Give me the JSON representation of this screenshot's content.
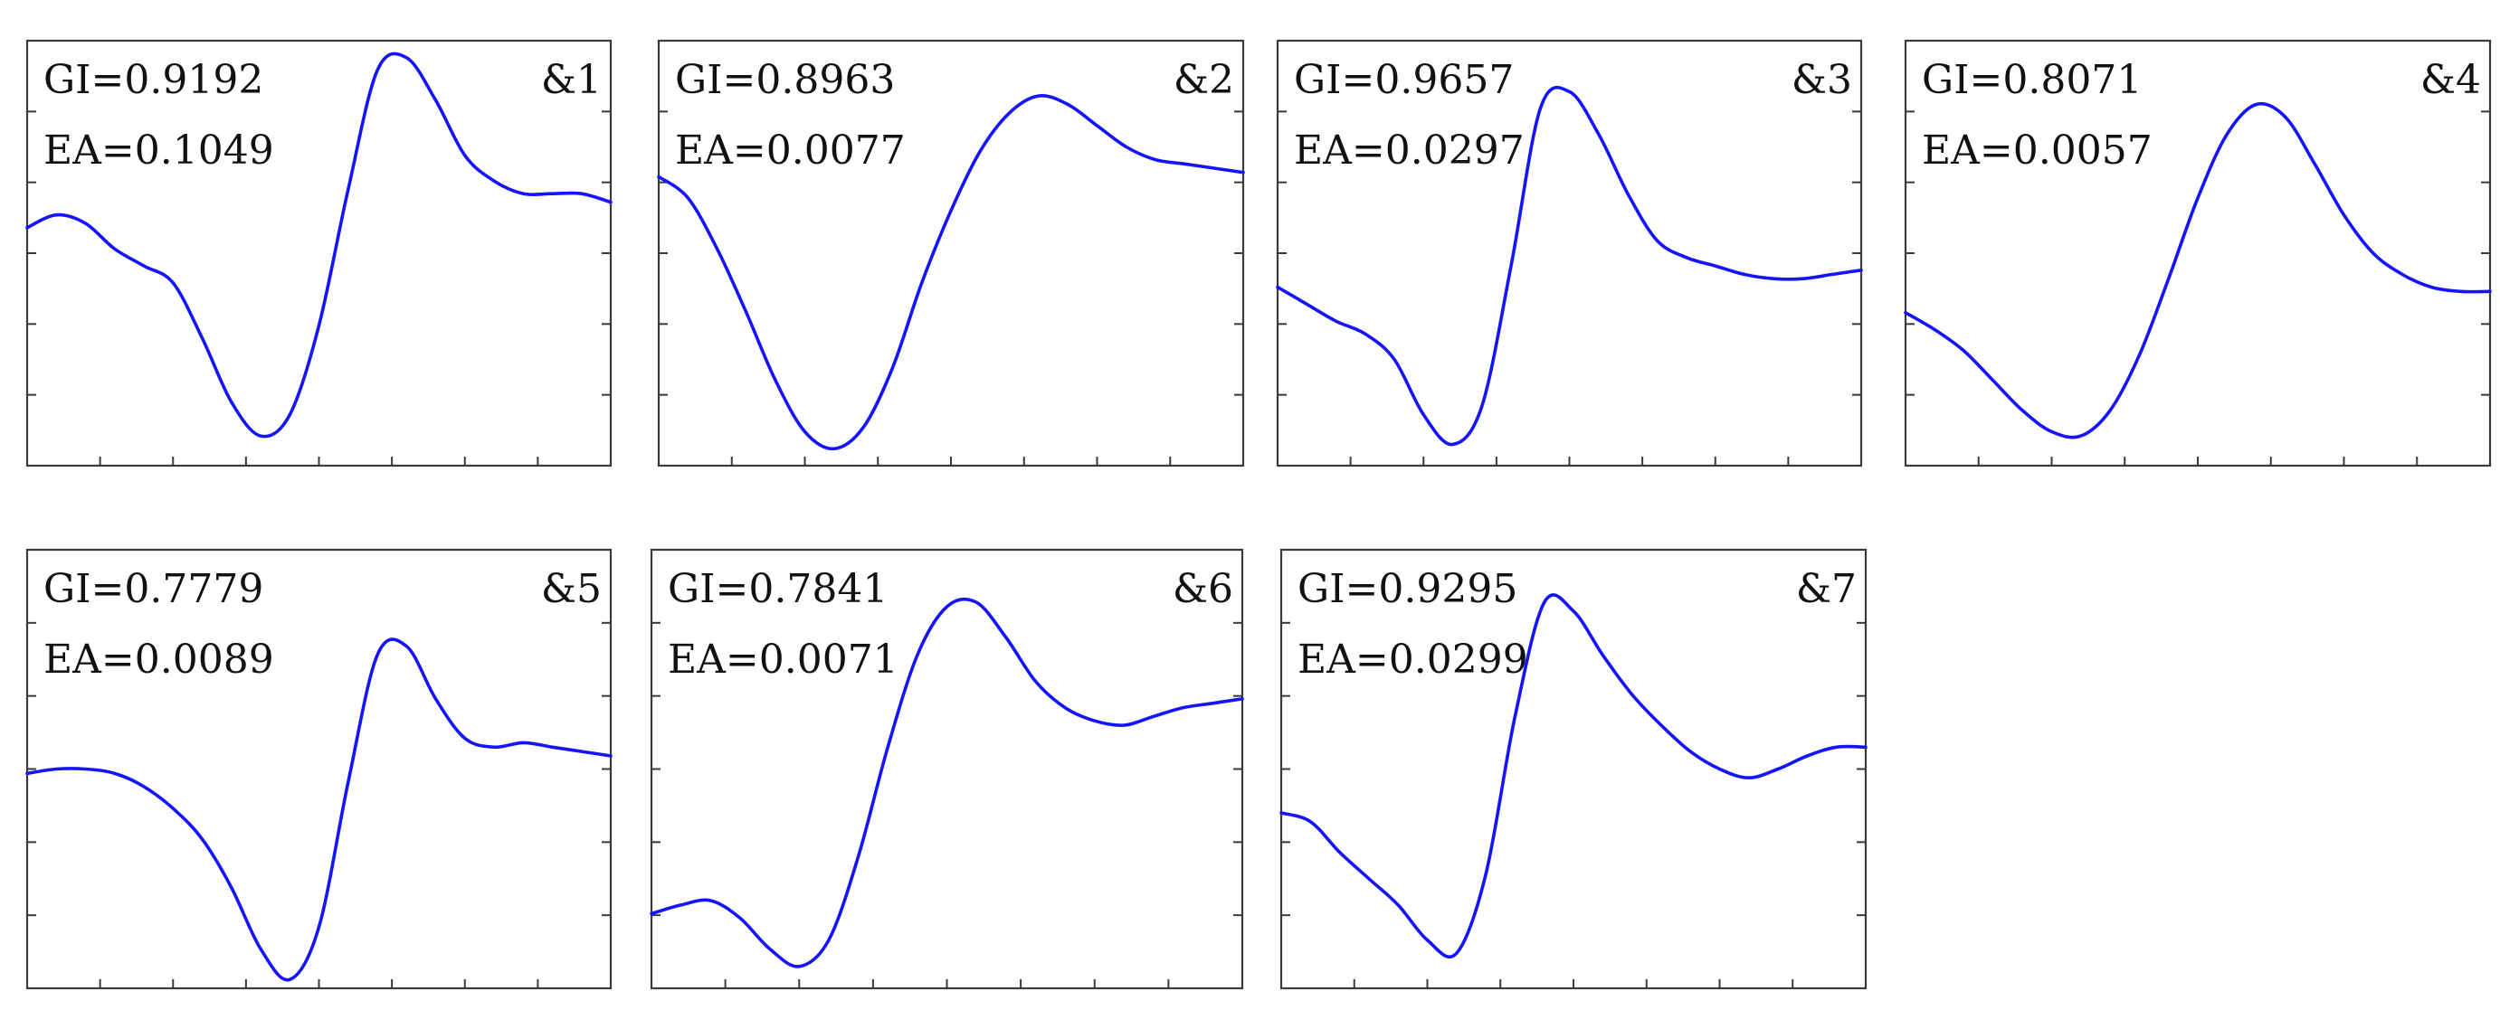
{
  "chart_data": [
    {
      "type": "line",
      "panel_label": "&1",
      "annotations": [
        "GI=0.9192",
        "EA=0.1049"
      ],
      "x": [
        0,
        0.05,
        0.1,
        0.15,
        0.2,
        0.25,
        0.3,
        0.35,
        0.4,
        0.45,
        0.5,
        0.55,
        0.6,
        0.65,
        0.7,
        0.75,
        0.8,
        0.85,
        0.9,
        0.95,
        1
      ],
      "y": [
        0.56,
        0.59,
        0.57,
        0.51,
        0.47,
        0.43,
        0.3,
        0.15,
        0.07,
        0.12,
        0.33,
        0.65,
        0.93,
        0.96,
        0.86,
        0.73,
        0.67,
        0.64,
        0.64,
        0.64,
        0.62
      ],
      "xlim": [
        0,
        1
      ],
      "ylim": [
        0,
        1
      ],
      "grid": false
    },
    {
      "type": "line",
      "panel_label": "&2",
      "annotations": [
        "GI=0.8963",
        "EA=0.0077"
      ],
      "x": [
        0,
        0.05,
        0.1,
        0.15,
        0.2,
        0.25,
        0.3,
        0.35,
        0.4,
        0.45,
        0.5,
        0.55,
        0.6,
        0.65,
        0.7,
        0.75,
        0.8,
        0.85,
        0.9,
        0.95,
        1
      ],
      "y": [
        0.68,
        0.63,
        0.51,
        0.36,
        0.2,
        0.08,
        0.04,
        0.09,
        0.23,
        0.43,
        0.6,
        0.74,
        0.83,
        0.87,
        0.85,
        0.8,
        0.75,
        0.72,
        0.71,
        0.7,
        0.69
      ],
      "xlim": [
        0,
        1
      ],
      "ylim": [
        0,
        1
      ],
      "grid": false
    },
    {
      "type": "line",
      "panel_label": "&3",
      "annotations": [
        "GI=0.9657",
        "EA=0.0297"
      ],
      "x": [
        0,
        0.05,
        0.1,
        0.15,
        0.2,
        0.25,
        0.3,
        0.35,
        0.4,
        0.45,
        0.5,
        0.55,
        0.6,
        0.65,
        0.7,
        0.75,
        0.8,
        0.85,
        0.9,
        0.95,
        1
      ],
      "y": [
        0.42,
        0.38,
        0.34,
        0.31,
        0.25,
        0.12,
        0.05,
        0.14,
        0.47,
        0.84,
        0.88,
        0.78,
        0.64,
        0.53,
        0.49,
        0.47,
        0.45,
        0.44,
        0.44,
        0.45,
        0.46
      ],
      "xlim": [
        0,
        1
      ],
      "ylim": [
        0,
        1
      ],
      "grid": false
    },
    {
      "type": "line",
      "panel_label": "&4",
      "annotations": [
        "GI=0.8071",
        "EA=0.0057"
      ],
      "x": [
        0,
        0.05,
        0.1,
        0.15,
        0.2,
        0.25,
        0.3,
        0.35,
        0.4,
        0.45,
        0.5,
        0.55,
        0.6,
        0.65,
        0.7,
        0.75,
        0.8,
        0.85,
        0.9,
        0.95,
        1
      ],
      "y": [
        0.36,
        0.32,
        0.27,
        0.2,
        0.13,
        0.08,
        0.07,
        0.13,
        0.26,
        0.44,
        0.63,
        0.78,
        0.85,
        0.82,
        0.71,
        0.59,
        0.5,
        0.45,
        0.42,
        0.41,
        0.41
      ],
      "xlim": [
        0,
        1
      ],
      "ylim": [
        0,
        1
      ],
      "grid": false
    },
    {
      "type": "line",
      "panel_label": "&5",
      "annotations": [
        "GI=0.7779",
        "EA=0.0089"
      ],
      "x": [
        0,
        0.05,
        0.1,
        0.15,
        0.2,
        0.25,
        0.3,
        0.35,
        0.4,
        0.45,
        0.5,
        0.55,
        0.6,
        0.65,
        0.7,
        0.75,
        0.8,
        0.85,
        0.9,
        0.95,
        1
      ],
      "y": [
        0.49,
        0.5,
        0.5,
        0.49,
        0.46,
        0.41,
        0.34,
        0.23,
        0.09,
        0.02,
        0.14,
        0.47,
        0.76,
        0.78,
        0.66,
        0.57,
        0.55,
        0.56,
        0.55,
        0.54,
        0.53
      ],
      "xlim": [
        0,
        1
      ],
      "ylim": [
        0,
        1
      ],
      "grid": false
    },
    {
      "type": "line",
      "panel_label": "&6",
      "annotations": [
        "GI=0.7841",
        "EA=0.0071"
      ],
      "x": [
        0,
        0.05,
        0.1,
        0.15,
        0.2,
        0.25,
        0.3,
        0.35,
        0.4,
        0.45,
        0.5,
        0.55,
        0.6,
        0.65,
        0.7,
        0.75,
        0.8,
        0.85,
        0.9,
        0.95,
        1
      ],
      "y": [
        0.17,
        0.19,
        0.2,
        0.16,
        0.09,
        0.05,
        0.11,
        0.3,
        0.55,
        0.76,
        0.87,
        0.88,
        0.8,
        0.7,
        0.64,
        0.61,
        0.6,
        0.62,
        0.64,
        0.65,
        0.66
      ],
      "xlim": [
        0,
        1
      ],
      "ylim": [
        0,
        1
      ],
      "grid": false
    },
    {
      "type": "line",
      "panel_label": "&7",
      "annotations": [
        "GI=0.9295",
        "EA=0.0299"
      ],
      "x": [
        0,
        0.05,
        0.1,
        0.15,
        0.2,
        0.25,
        0.3,
        0.35,
        0.4,
        0.45,
        0.5,
        0.55,
        0.6,
        0.65,
        0.7,
        0.75,
        0.8,
        0.85,
        0.9,
        0.95,
        1
      ],
      "y": [
        0.4,
        0.38,
        0.31,
        0.25,
        0.19,
        0.11,
        0.08,
        0.26,
        0.62,
        0.88,
        0.86,
        0.76,
        0.67,
        0.6,
        0.54,
        0.5,
        0.48,
        0.5,
        0.53,
        0.55,
        0.55
      ],
      "xlim": [
        0,
        1
      ],
      "ylim": [
        0,
        1
      ],
      "grid": false
    }
  ]
}
